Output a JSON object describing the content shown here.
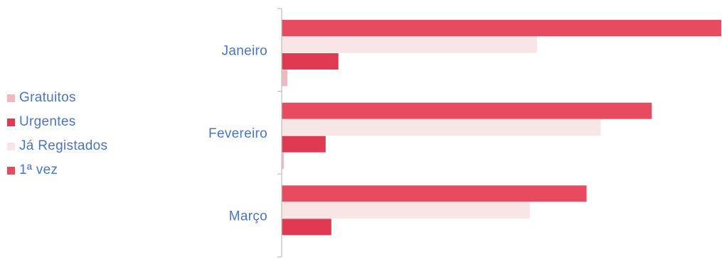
{
  "colors": {
    "first_time": "#e84a5f",
    "registered": "#f8e6e6",
    "urgent": "#e03a52",
    "free": "#f3b7c0",
    "axis": "#c4c4c4",
    "text": "#4a74c9"
  },
  "chart_data": {
    "type": "bar",
    "orientation": "horizontal",
    "title": "",
    "xlabel": "",
    "ylabel": "",
    "grid": false,
    "legend_position": "left",
    "categories": [
      "Janeiro",
      "Fevereiro",
      "Março"
    ],
    "xlim": [
      0,
      620
    ],
    "series": [
      {
        "name": "1ª vez",
        "color": "#e84a5f",
        "values": [
          620,
          522,
          430
        ]
      },
      {
        "name": "Já Registados",
        "color": "#f8e6e6",
        "values": [
          360,
          450,
          350
        ]
      },
      {
        "name": "Urgentes",
        "color": "#e03a52",
        "values": [
          80,
          62,
          70
        ]
      },
      {
        "name": "Gratuitos",
        "color": "#f3b7c0",
        "values": [
          8,
          3,
          0
        ]
      }
    ],
    "legend_order": [
      "Gratuitos",
      "Urgentes",
      "Já Registados",
      "1ª vez"
    ]
  }
}
